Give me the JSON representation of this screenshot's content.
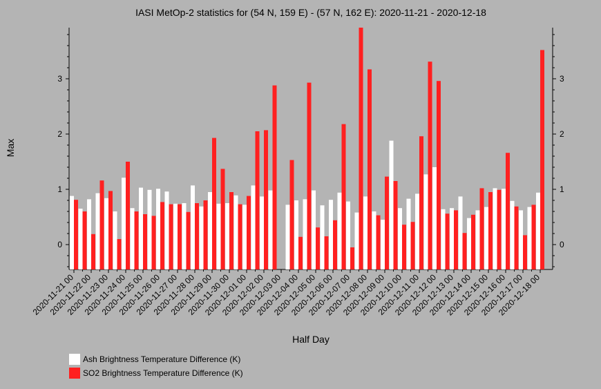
{
  "chart_data": {
    "type": "bar",
    "title": "IASI MetOp-2 statistics for (54 N, 159 E) - (57 N, 162 E): 2020-11-21 - 2020-12-18",
    "xlabel": "Half Day",
    "ylabel": "Max",
    "ylim": [
      -0.45,
      3.9
    ],
    "yticks": [
      0,
      1,
      2,
      3
    ],
    "grid": false,
    "legend_position": "bottom-left",
    "x_tick_labels": [
      "2020-11-21 00",
      "2020-11-22 00",
      "2020-11-23 00",
      "2020-11-24 00",
      "2020-11-25 00",
      "2020-11-26 00",
      "2020-11-27 00",
      "2020-11-28 00",
      "2020-11-29 00",
      "2020-11-30 00",
      "2020-12-01 00",
      "2020-12-02 00",
      "2020-12-03 00",
      "2020-12-04 00",
      "2020-12-05 00",
      "2020-12-06 00",
      "2020-12-07 00",
      "2020-12-08 00",
      "2020-12-09 00",
      "2020-12-10 00",
      "2020-12-11 00",
      "2020-12-12 00",
      "2020-12-13 00",
      "2020-12-14 00",
      "2020-12-15 00",
      "2020-12-16 00",
      "2020-12-17 00",
      "2020-12-18 00"
    ],
    "series": [
      {
        "name": "Ash Brightness Temperature Difference (K)",
        "color": "#ffffff",
        "values": [
          0.88,
          0.65,
          0.82,
          0.93,
          0.84,
          0.6,
          1.21,
          0.66,
          1.03,
          0.99,
          1.01,
          0.96,
          0.74,
          0.75,
          1.07,
          0.69,
          0.95,
          0.74,
          0.75,
          0.89,
          0.72,
          1.07,
          0.87,
          0.98,
          null,
          0.72,
          0.8,
          0.82,
          0.98,
          0.71,
          0.81,
          0.94,
          0.78,
          0.58,
          0.87,
          0.6,
          0.45,
          1.88,
          0.66,
          0.83,
          0.92,
          1.27,
          1.4,
          0.64,
          0.66,
          0.87,
          0.48,
          0.62,
          0.68,
          1.02,
          1.01,
          0.79,
          0.62,
          0.68,
          0.94
        ]
      },
      {
        "name": "SO2 Brightness Temperature Difference (K)",
        "color": "#ff2020",
        "values": [
          0.81,
          0.6,
          0.19,
          1.16,
          0.97,
          0.1,
          1.5,
          0.6,
          0.55,
          0.52,
          0.77,
          0.73,
          0.73,
          0.59,
          0.75,
          0.8,
          1.93,
          1.37,
          0.95,
          0.73,
          0.88,
          2.05,
          2.07,
          2.88,
          null,
          1.53,
          0.14,
          2.93,
          0.31,
          0.15,
          0.44,
          2.18,
          -0.05,
          3.95,
          3.17,
          0.53,
          1.23,
          1.15,
          0.36,
          0.41,
          1.96,
          3.31,
          2.96,
          0.56,
          0.62,
          0.21,
          0.54,
          1.02,
          0.95,
          0.99,
          1.66,
          0.69,
          0.17,
          0.72,
          3.52
        ]
      }
    ]
  }
}
